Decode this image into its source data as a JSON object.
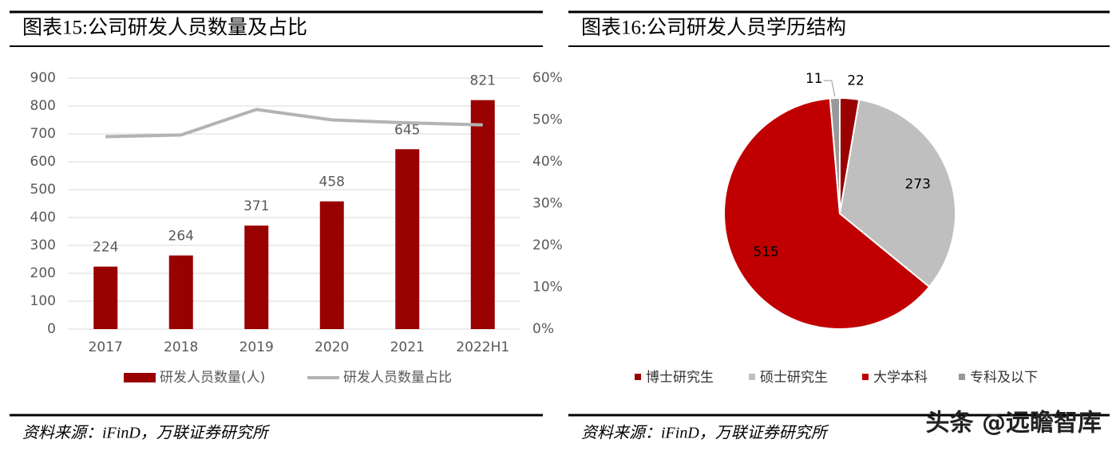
{
  "chart_data": [
    {
      "type": "bar",
      "title": "图表15:公司研发人员数量及占比",
      "categories": [
        "2017",
        "2018",
        "2019",
        "2020",
        "2021",
        "2022H1"
      ],
      "series": [
        {
          "name": "研发人员数量(人)",
          "color": "#990000",
          "values": [
            224,
            264,
            371,
            458,
            645,
            821
          ]
        },
        {
          "name": "研发人员数量占比",
          "type": "line",
          "axis": "y2",
          "color": "#b3b3b3",
          "values": [
            46,
            46.4,
            52.5,
            50,
            49.3,
            48.8
          ]
        }
      ],
      "ylim": [
        0,
        900
      ],
      "yticks": [
        0,
        100,
        200,
        300,
        400,
        500,
        600,
        700,
        800,
        900
      ],
      "y2lim": [
        0,
        60
      ],
      "y2ticks": [
        {
          "value": 0,
          "label": "0%"
        },
        {
          "value": 10,
          "label": "10%"
        },
        {
          "value": 20,
          "label": "20%"
        },
        {
          "value": 30,
          "label": "30%"
        },
        {
          "value": 40,
          "label": "40%"
        },
        {
          "value": 50,
          "label": "50%"
        },
        {
          "value": 60,
          "label": "60%"
        }
      ],
      "grid": true,
      "source": "资料来源：iFinD，万联证券研究所"
    },
    {
      "type": "pie",
      "title": "图表16:公司研发人员学历结构",
      "categories": [
        "博士研究生",
        "硕士研究生",
        "大学本科",
        "专科及以下"
      ],
      "values": [
        22,
        273,
        515,
        11
      ],
      "colors": [
        "#990000",
        "#bfbfbf",
        "#c00000",
        "#999999"
      ],
      "source": "资料来源：iFinD，万联证券研究所"
    }
  ],
  "watermark": "头条 @远瞻智库"
}
